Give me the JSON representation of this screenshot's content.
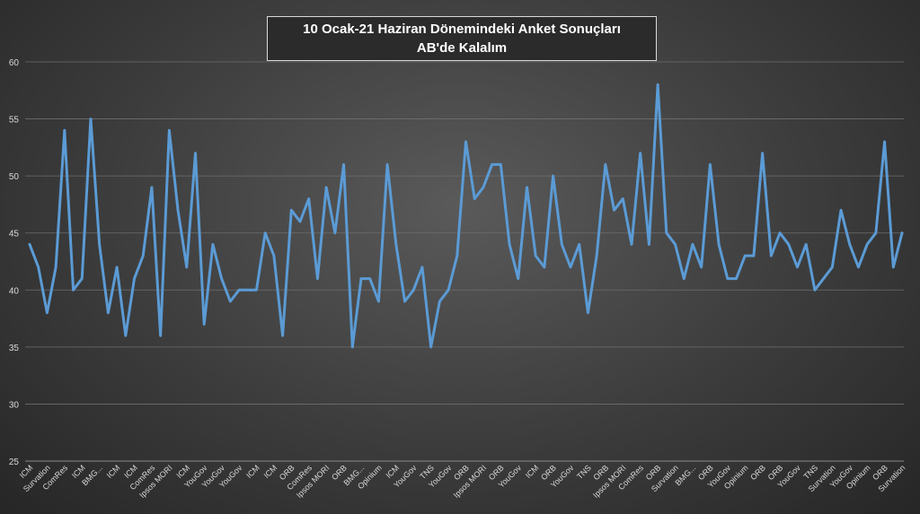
{
  "chart_data": {
    "type": "line",
    "title": "10 Ocak-21 Haziran Dönemindeki Anket Sonuçları",
    "subtitle": "AB'de Kalalım",
    "xlabel": "",
    "ylabel": "",
    "ylim": [
      25,
      60
    ],
    "yticks": [
      25,
      30,
      35,
      40,
      45,
      50,
      55,
      60
    ],
    "grid": true,
    "line_color": "#5b9bd5",
    "categories": [
      "ICM",
      "",
      "Survation",
      "",
      "ComRes",
      "",
      "ICM",
      "",
      "BMG...",
      "",
      "ICM",
      "",
      "ICM",
      "",
      "ComRes",
      "",
      "Ipsos MORI",
      "",
      "ICM",
      "",
      "YouGov",
      "",
      "YouGov",
      "",
      "YouGov",
      "",
      "ICM",
      "",
      "ICM",
      "",
      "ORB",
      "",
      "ComRes",
      "",
      "Ipsos MORI",
      "",
      "ORB",
      "",
      "BMG...",
      "",
      "Opinium",
      "",
      "ICM",
      "",
      "YouGov",
      "",
      "TNS",
      "",
      "YouGov",
      "",
      "ORB",
      "",
      "Ipsos MORI",
      "",
      "ORB",
      "",
      "YouGov",
      "",
      "ICM",
      "",
      "ORB",
      "",
      "YouGov",
      "",
      "TNS",
      "",
      "ORB",
      "",
      "Ipsos MORI",
      "",
      "ComRes",
      "",
      "ORB",
      "",
      "Survation",
      "",
      "BMG...",
      "",
      "ORB",
      "",
      "YouGov",
      "",
      "Opinium",
      "",
      "ORB",
      "",
      "ORB",
      "",
      "YouGov",
      "",
      "TNS",
      "",
      "Survation",
      "",
      "YouGov",
      "",
      "Opinium",
      "",
      "ORB",
      "",
      "Survation"
    ],
    "series": [
      {
        "values": [
          44,
          42,
          38,
          42,
          54,
          40,
          41,
          55,
          44,
          38,
          42,
          36,
          41,
          43,
          49,
          36,
          54,
          47,
          42,
          52,
          37,
          44,
          41,
          39,
          40,
          40,
          40,
          45,
          43,
          36,
          47,
          46,
          48,
          41,
          49,
          45,
          51,
          35,
          41,
          41,
          39,
          51,
          44,
          39,
          40,
          42,
          35,
          39,
          40,
          43,
          53,
          48,
          49,
          51,
          51,
          44,
          41,
          49,
          43,
          42,
          50,
          44,
          42,
          44,
          38,
          43,
          51,
          47,
          48,
          44,
          52,
          44,
          58,
          45,
          44,
          41,
          44,
          42,
          51,
          44,
          41,
          41,
          43,
          43,
          52,
          43,
          45,
          44,
          42,
          44,
          40,
          41,
          42,
          47,
          44,
          42,
          44,
          45,
          53,
          42,
          45
        ]
      }
    ]
  }
}
